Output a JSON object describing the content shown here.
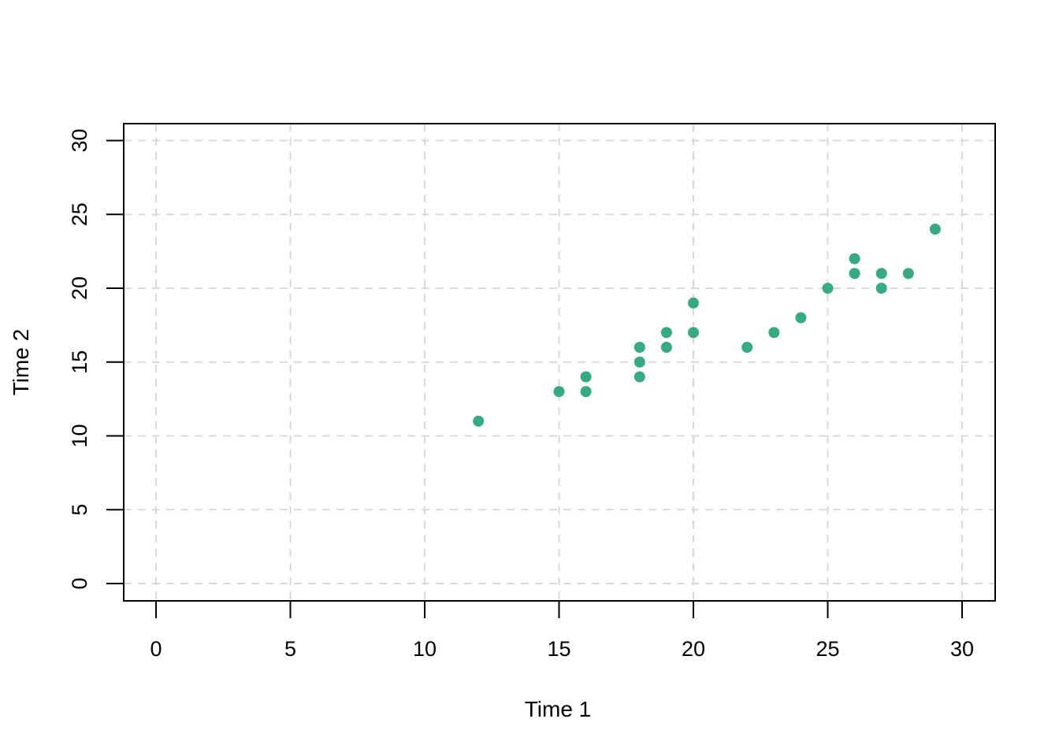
{
  "chart_data": {
    "type": "scatter",
    "title": "",
    "xlabel": "Time 1",
    "ylabel": "Time 2",
    "xlim": [
      0,
      30
    ],
    "ylim": [
      0,
      30
    ],
    "xticks": [
      "0",
      "5",
      "10",
      "15",
      "20",
      "25",
      "30"
    ],
    "yticks": [
      "0",
      "5",
      "10",
      "15",
      "20",
      "25",
      "30"
    ],
    "grid": true,
    "point_color": "#35AA85",
    "grid_color": "#d9d9d9",
    "points": [
      {
        "x": 12,
        "y": 11
      },
      {
        "x": 15,
        "y": 13
      },
      {
        "x": 16,
        "y": 13
      },
      {
        "x": 16,
        "y": 14
      },
      {
        "x": 18,
        "y": 14
      },
      {
        "x": 18,
        "y": 15
      },
      {
        "x": 18,
        "y": 16
      },
      {
        "x": 19,
        "y": 16
      },
      {
        "x": 19,
        "y": 17
      },
      {
        "x": 20,
        "y": 17
      },
      {
        "x": 20,
        "y": 19
      },
      {
        "x": 22,
        "y": 16
      },
      {
        "x": 23,
        "y": 17
      },
      {
        "x": 24,
        "y": 18
      },
      {
        "x": 25,
        "y": 20
      },
      {
        "x": 26,
        "y": 21
      },
      {
        "x": 26,
        "y": 22
      },
      {
        "x": 27,
        "y": 20
      },
      {
        "x": 27,
        "y": 21
      },
      {
        "x": 28,
        "y": 21
      },
      {
        "x": 29,
        "y": 24
      }
    ]
  }
}
